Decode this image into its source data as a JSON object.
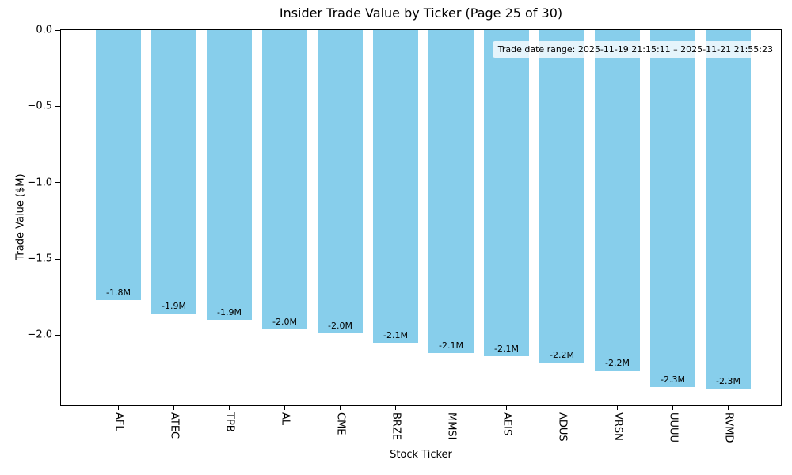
{
  "chart_data": {
    "type": "bar",
    "title": "Insider Trade Value by Ticker (Page 25 of 30)",
    "xlabel": "Stock Ticker",
    "ylabel": "Trade Value ($M)",
    "categories": [
      "AFL",
      "ATEC",
      "TPB",
      "AL",
      "CME",
      "BRZE",
      "MMSI",
      "AEIS",
      "ADUS",
      "VRSN",
      "UUUU",
      "RVMD"
    ],
    "values": [
      -1.77,
      -1.86,
      -1.9,
      -1.96,
      -1.99,
      -2.05,
      -2.12,
      -2.14,
      -2.18,
      -2.23,
      -2.34,
      -2.35
    ],
    "bar_labels": [
      "-1.8M",
      "-1.9M",
      "-1.9M",
      "-2.0M",
      "-2.0M",
      "-2.1M",
      "-2.1M",
      "-2.1M",
      "-2.2M",
      "-2.2M",
      "-2.3M",
      "-2.3M"
    ],
    "annotation": "Trade date range: 2025-11-19 21:15:11 – 2025-11-21 21:55:23",
    "bar_color": "#87CEEB",
    "axis_color": "#000000",
    "background_color": "#ffffff",
    "ylim": [
      -2.46,
      0
    ],
    "yticks": [
      0.0,
      -0.5,
      -1.0,
      -1.5,
      -2.0
    ],
    "ytick_labels": [
      "0.0",
      "−0.5",
      "−1.0",
      "−1.5",
      "−2.0"
    ],
    "grid": false,
    "legend": null
  }
}
